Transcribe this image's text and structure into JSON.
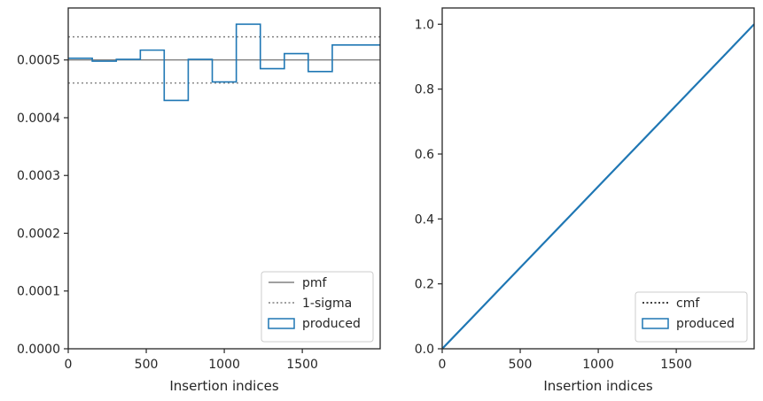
{
  "chart_data": [
    {
      "type": "line",
      "xlabel": "Insertion indices",
      "ylabel": "",
      "xlim": [
        0,
        1999
      ],
      "ylim": [
        0,
        0.00059
      ],
      "xticks": [
        0,
        500,
        1000,
        1500
      ],
      "xtick_labels": [
        "0",
        "500",
        "1000",
        "1500"
      ],
      "yticks": [
        0,
        0.0001,
        0.0002,
        0.0003,
        0.0004,
        0.0005
      ],
      "ytick_labels": [
        "0.0000",
        "0.0001",
        "0.0002",
        "0.0003",
        "0.0004",
        "0.0005"
      ],
      "grid": false,
      "legend_position": "bottom-right",
      "series": [
        {
          "name": "pmf",
          "style": "solid",
          "color": "#808080",
          "y": 0.0005
        },
        {
          "name": "1-sigma",
          "style": "dotted",
          "color": "#808080",
          "y": [
            0.00046,
            0.00054
          ]
        },
        {
          "name": "produced",
          "style": "step-histogram",
          "color": "#1f77b4",
          "bin_edges": [
            0,
            154,
            308,
            462,
            615,
            769,
            923,
            1077,
            1231,
            1385,
            1538,
            1692,
            1999
          ],
          "values": [
            0.000503,
            0.000498,
            0.000501,
            0.000517,
            0.00043,
            0.000501,
            0.000462,
            0.000562,
            0.000485,
            0.000511,
            0.00048,
            0.000526
          ]
        }
      ]
    },
    {
      "type": "line",
      "xlabel": "Insertion indices",
      "ylabel": "",
      "xlim": [
        0,
        1999
      ],
      "ylim": [
        0,
        1.05
      ],
      "xticks": [
        0,
        500,
        1000,
        1500
      ],
      "xtick_labels": [
        "0",
        "500",
        "1000",
        "1500"
      ],
      "yticks": [
        0,
        0.2,
        0.4,
        0.6,
        0.8,
        1.0
      ],
      "ytick_labels": [
        "0.0",
        "0.2",
        "0.4",
        "0.6",
        "0.8",
        "1.0"
      ],
      "grid": false,
      "legend_position": "bottom-right",
      "series": [
        {
          "name": "cmf",
          "style": "dotted",
          "color": "#000000",
          "x": [
            0,
            1999
          ],
          "y": [
            0,
            1.0
          ]
        },
        {
          "name": "produced",
          "style": "step-histogram",
          "color": "#1f77b4",
          "x": [
            0,
            200,
            400,
            600,
            800,
            1000,
            1200,
            1400,
            1600,
            1800,
            1999
          ],
          "y": [
            0,
            0.1,
            0.2,
            0.3,
            0.4,
            0.5,
            0.6,
            0.7,
            0.8,
            0.9,
            1.0
          ]
        }
      ]
    }
  ]
}
